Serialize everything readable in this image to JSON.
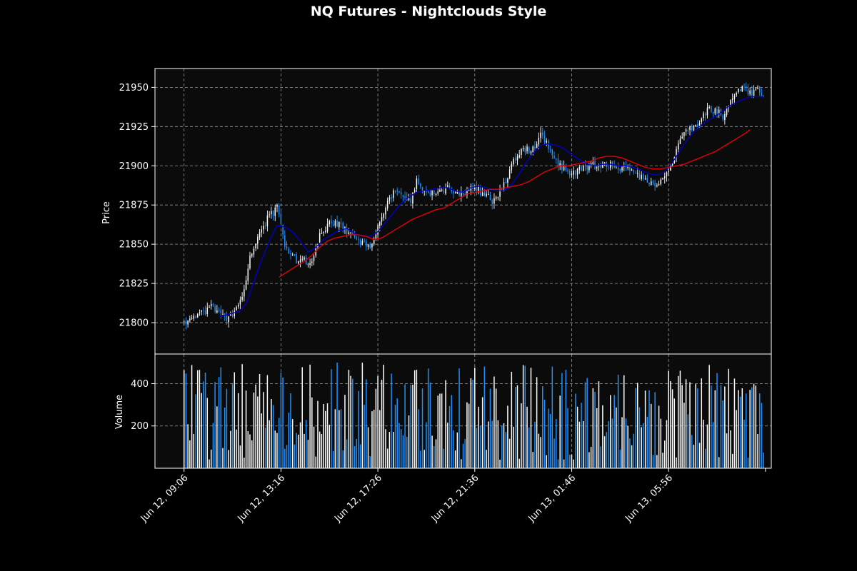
{
  "chart_data": {
    "type": "candlestick",
    "title": "NQ Futures - Nightclouds Style",
    "style": "nightclouds",
    "colors": {
      "background": "#000000",
      "panel": "#0b0b0b",
      "up": "#ffffff",
      "down": "#1e90ff",
      "ma_fast": "#0000cc",
      "ma_slow": "#e0000e",
      "grid": "#9a9a9a",
      "text": "#ffffff"
    },
    "grid": true,
    "price_panel": {
      "ylabel": "Price",
      "ylim": [
        21780,
        21962
      ],
      "yticks": [
        21800,
        21825,
        21850,
        21875,
        21900,
        21925,
        21950
      ]
    },
    "volume_panel": {
      "ylabel": "Volume",
      "ylim": [
        0,
        540
      ],
      "yticks": [
        200,
        400
      ]
    },
    "x_axis": {
      "bar_interval_minutes": 5,
      "tick_labels": [
        "Jun 12, 09:06",
        "Jun 12, 13:16",
        "Jun 12, 17:26",
        "Jun 12, 21:36",
        "Jun 13, 01:46",
        "Jun 13, 05:56"
      ],
      "tick_bar_index": [
        0,
        50,
        100,
        150,
        200,
        250
      ],
      "last_tick_bar_index": 300,
      "xlim_bars": [
        -15,
        303
      ]
    },
    "price_path": [
      [
        0,
        21800
      ],
      [
        5,
        21803
      ],
      [
        10,
        21807
      ],
      [
        15,
        21810
      ],
      [
        20,
        21804
      ],
      [
        22,
        21800
      ],
      [
        25,
        21806
      ],
      [
        28,
        21812
      ],
      [
        30,
        21818
      ],
      [
        33,
        21835
      ],
      [
        35,
        21846
      ],
      [
        40,
        21858
      ],
      [
        43,
        21866
      ],
      [
        46,
        21870
      ],
      [
        48,
        21877
      ],
      [
        50,
        21862
      ],
      [
        53,
        21845
      ],
      [
        58,
        21840
      ],
      [
        62,
        21840
      ],
      [
        65,
        21838
      ],
      [
        68,
        21848
      ],
      [
        70,
        21855
      ],
      [
        74,
        21862
      ],
      [
        78,
        21865
      ],
      [
        82,
        21860
      ],
      [
        86,
        21856
      ],
      [
        90,
        21855
      ],
      [
        92,
        21850
      ],
      [
        96,
        21848
      ],
      [
        98,
        21855
      ],
      [
        100,
        21860
      ],
      [
        103,
        21868
      ],
      [
        106,
        21880
      ],
      [
        110,
        21885
      ],
      [
        113,
        21878
      ],
      [
        117,
        21878
      ],
      [
        120,
        21890
      ],
      [
        124,
        21884
      ],
      [
        128,
        21882
      ],
      [
        132,
        21884
      ],
      [
        136,
        21886
      ],
      [
        140,
        21883
      ],
      [
        145,
        21883
      ],
      [
        150,
        21886
      ],
      [
        155,
        21882
      ],
      [
        160,
        21877
      ],
      [
        163,
        21882
      ],
      [
        168,
        21896
      ],
      [
        172,
        21908
      ],
      [
        176,
        21910
      ],
      [
        180,
        21910
      ],
      [
        184,
        21922
      ],
      [
        188,
        21912
      ],
      [
        192,
        21902
      ],
      [
        196,
        21898
      ],
      [
        200,
        21895
      ],
      [
        204,
        21898
      ],
      [
        208,
        21900
      ],
      [
        212,
        21900
      ],
      [
        216,
        21900
      ],
      [
        220,
        21900
      ],
      [
        224,
        21899
      ],
      [
        230,
        21898
      ],
      [
        236,
        21892
      ],
      [
        240,
        21888
      ],
      [
        244,
        21889
      ],
      [
        248,
        21893
      ],
      [
        252,
        21902
      ],
      [
        255,
        21915
      ],
      [
        258,
        21920
      ],
      [
        262,
        21925
      ],
      [
        266,
        21925
      ],
      [
        270,
        21938
      ],
      [
        274,
        21935
      ],
      [
        278,
        21932
      ],
      [
        282,
        21942
      ],
      [
        285,
        21946
      ],
      [
        288,
        21950
      ],
      [
        292,
        21946
      ],
      [
        296,
        21948
      ],
      [
        299,
        21944
      ]
    ],
    "moving_averages": [
      {
        "window_bars": 20,
        "color": "#0000cc",
        "points": [
          [
            18,
            21804
          ],
          [
            22,
            21805
          ],
          [
            28,
            21807
          ],
          [
            32,
            21812
          ],
          [
            36,
            21826
          ],
          [
            40,
            21840
          ],
          [
            44,
            21852
          ],
          [
            48,
            21862
          ],
          [
            52,
            21861
          ],
          [
            56,
            21858
          ],
          [
            60,
            21852
          ],
          [
            64,
            21845
          ],
          [
            68,
            21848
          ],
          [
            72,
            21853
          ],
          [
            76,
            21856
          ],
          [
            80,
            21859
          ],
          [
            84,
            21860
          ],
          [
            88,
            21857
          ],
          [
            92,
            21855
          ],
          [
            96,
            21855
          ],
          [
            100,
            21858
          ],
          [
            104,
            21864
          ],
          [
            108,
            21870
          ],
          [
            112,
            21876
          ],
          [
            116,
            21880
          ],
          [
            120,
            21883
          ],
          [
            124,
            21884
          ],
          [
            128,
            21885
          ],
          [
            132,
            21886
          ],
          [
            136,
            21886
          ],
          [
            140,
            21884
          ],
          [
            144,
            21883
          ],
          [
            148,
            21886
          ],
          [
            152,
            21887
          ],
          [
            156,
            21886
          ],
          [
            160,
            21884
          ],
          [
            164,
            21884
          ],
          [
            168,
            21886
          ],
          [
            172,
            21893
          ],
          [
            176,
            21901
          ],
          [
            180,
            21908
          ],
          [
            184,
            21913
          ],
          [
            188,
            21914
          ],
          [
            192,
            21913
          ],
          [
            196,
            21911
          ],
          [
            200,
            21907
          ],
          [
            204,
            21904
          ],
          [
            208,
            21901
          ],
          [
            212,
            21900
          ],
          [
            216,
            21901
          ],
          [
            220,
            21901
          ],
          [
            224,
            21900
          ],
          [
            228,
            21900
          ],
          [
            232,
            21899
          ],
          [
            236,
            21897
          ],
          [
            240,
            21895
          ],
          [
            244,
            21894
          ],
          [
            248,
            21896
          ],
          [
            252,
            21902
          ],
          [
            256,
            21910
          ],
          [
            260,
            21917
          ],
          [
            264,
            21923
          ],
          [
            268,
            21927
          ],
          [
            272,
            21930
          ],
          [
            276,
            21933
          ],
          [
            280,
            21937
          ],
          [
            284,
            21940
          ],
          [
            288,
            21942
          ],
          [
            292,
            21944
          ],
          [
            296,
            21944
          ],
          [
            299,
            21944
          ]
        ]
      },
      {
        "window_bars": 50,
        "color": "#e0000e",
        "points": [
          [
            49,
            21829
          ],
          [
            54,
            21833
          ],
          [
            58,
            21836
          ],
          [
            62,
            21839
          ],
          [
            66,
            21843
          ],
          [
            70,
            21848
          ],
          [
            74,
            21852
          ],
          [
            78,
            21854
          ],
          [
            82,
            21855
          ],
          [
            86,
            21856
          ],
          [
            90,
            21856
          ],
          [
            94,
            21855
          ],
          [
            98,
            21853
          ],
          [
            102,
            21854
          ],
          [
            106,
            21857
          ],
          [
            110,
            21860
          ],
          [
            114,
            21863
          ],
          [
            118,
            21866
          ],
          [
            122,
            21868
          ],
          [
            126,
            21870
          ],
          [
            130,
            21872
          ],
          [
            134,
            21873
          ],
          [
            138,
            21876
          ],
          [
            142,
            21879
          ],
          [
            146,
            21882
          ],
          [
            150,
            21883
          ],
          [
            154,
            21884
          ],
          [
            158,
            21885
          ],
          [
            162,
            21885
          ],
          [
            166,
            21886
          ],
          [
            170,
            21887
          ],
          [
            174,
            21888
          ],
          [
            178,
            21890
          ],
          [
            182,
            21893
          ],
          [
            186,
            21896
          ],
          [
            190,
            21898
          ],
          [
            194,
            21900
          ],
          [
            198,
            21900
          ],
          [
            202,
            21901
          ],
          [
            206,
            21902
          ],
          [
            210,
            21903
          ],
          [
            214,
            21905
          ],
          [
            218,
            21906
          ],
          [
            222,
            21906
          ],
          [
            226,
            21905
          ],
          [
            230,
            21903
          ],
          [
            234,
            21901
          ],
          [
            238,
            21899
          ],
          [
            242,
            21898
          ],
          [
            246,
            21898
          ],
          [
            250,
            21899
          ],
          [
            254,
            21900
          ],
          [
            258,
            21901
          ],
          [
            262,
            21903
          ],
          [
            266,
            21905
          ],
          [
            270,
            21907
          ],
          [
            274,
            21909
          ],
          [
            278,
            21912
          ],
          [
            282,
            21915
          ],
          [
            286,
            21918
          ],
          [
            290,
            21921
          ],
          [
            292,
            21923
          ]
        ]
      }
    ],
    "n_bars": 300,
    "volume_range": [
      0,
      500
    ]
  }
}
